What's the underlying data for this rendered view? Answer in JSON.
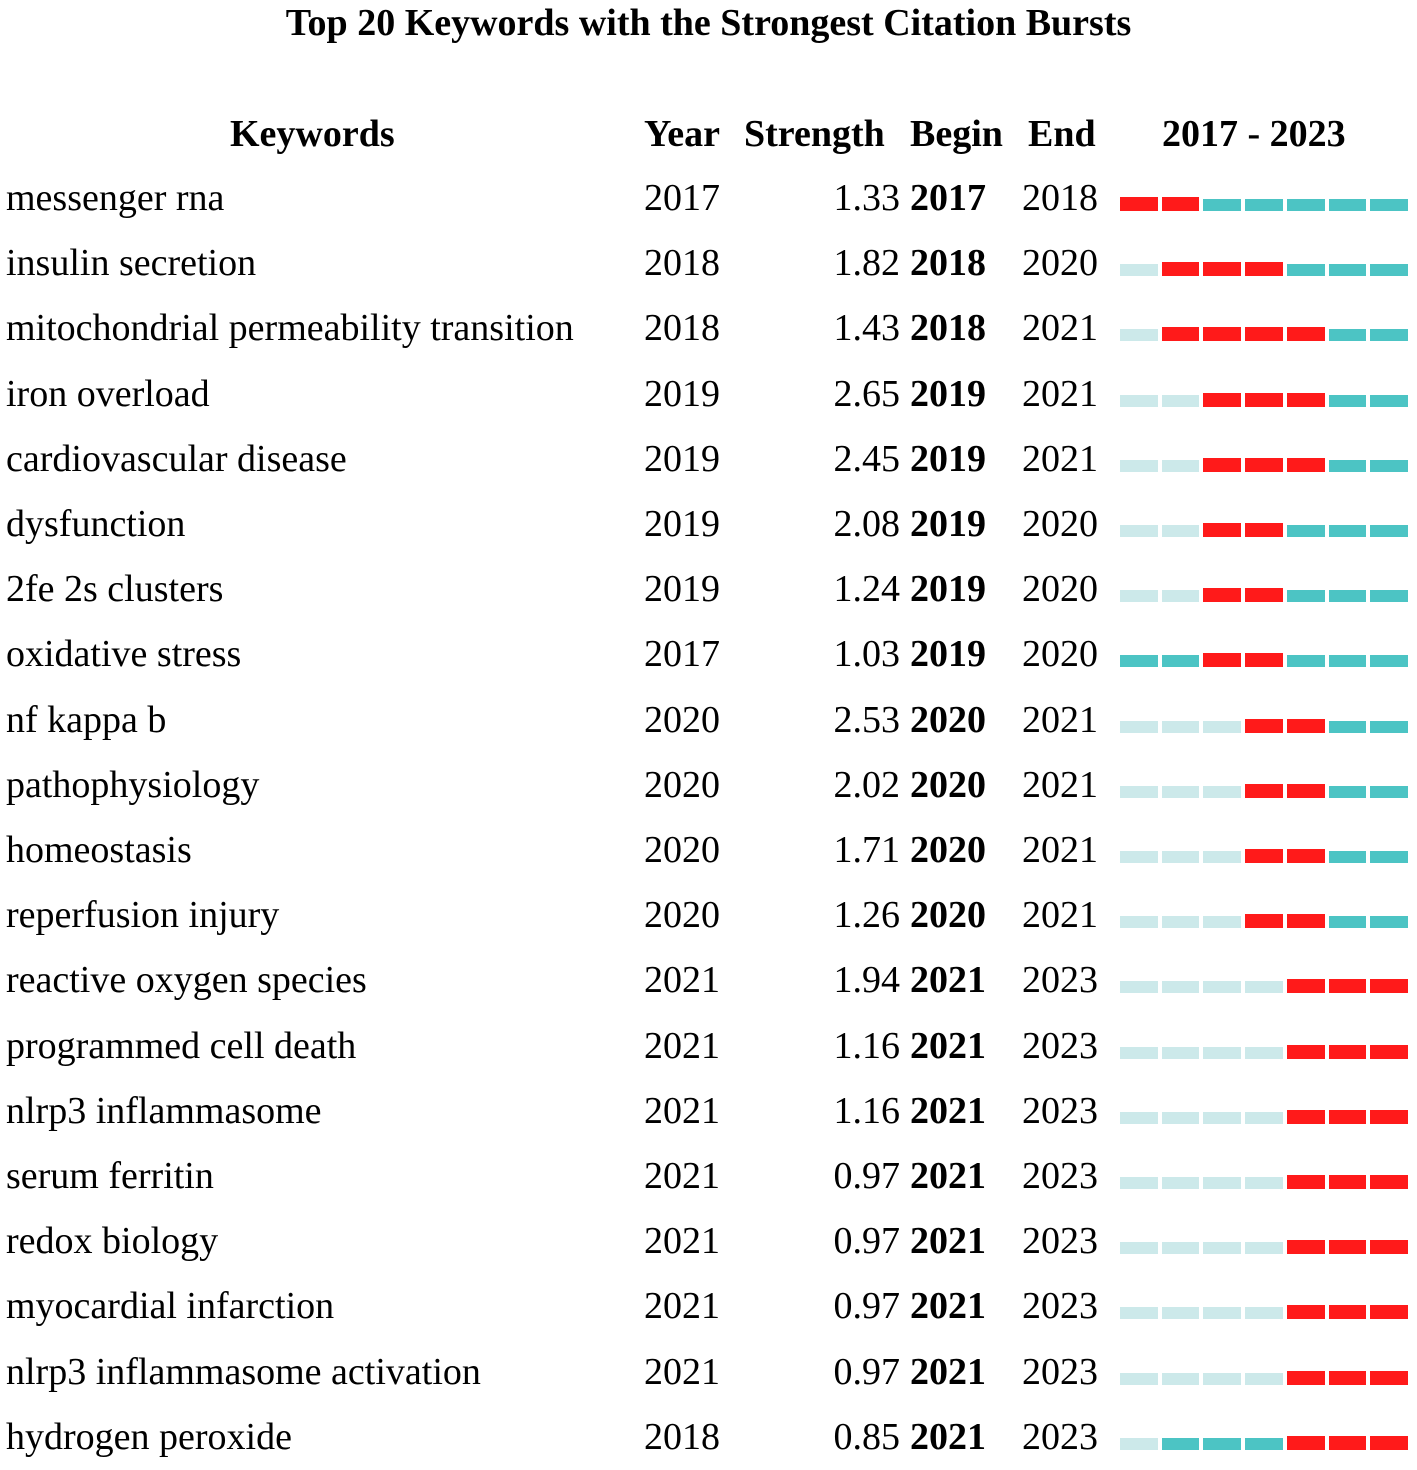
{
  "title": "Top 20 Keywords with the Strongest Citation Bursts",
  "headers": {
    "keywords": "Keywords",
    "year": "Year",
    "strength": "Strength",
    "begin": "Begin",
    "end": "End",
    "range": "2017 - 2023"
  },
  "colors": {
    "burst": "#ff1a1a",
    "active": "#4cc4c4",
    "inactive": "#cce9ea"
  },
  "chart_data": {
    "type": "table",
    "title": "Top 20 Keywords with the Strongest Citation Bursts",
    "timeline": {
      "start": 2017,
      "end": 2023
    },
    "rows": [
      {
        "keyword": "messenger rna",
        "year": "2017",
        "strength": "1.33",
        "begin": "2017",
        "end": "2018"
      },
      {
        "keyword": "insulin secretion",
        "year": "2018",
        "strength": "1.82",
        "begin": "2018",
        "end": "2020"
      },
      {
        "keyword": "mitochondrial permeability transition",
        "year": "2018",
        "strength": "1.43",
        "begin": "2018",
        "end": "2021"
      },
      {
        "keyword": "iron overload",
        "year": "2019",
        "strength": "2.65",
        "begin": "2019",
        "end": "2021"
      },
      {
        "keyword": "cardiovascular disease",
        "year": "2019",
        "strength": "2.45",
        "begin": "2019",
        "end": "2021"
      },
      {
        "keyword": "dysfunction",
        "year": "2019",
        "strength": "2.08",
        "begin": "2019",
        "end": "2020"
      },
      {
        "keyword": "2fe 2s clusters",
        "year": "2019",
        "strength": "1.24",
        "begin": "2019",
        "end": "2020"
      },
      {
        "keyword": "oxidative stress",
        "year": "2017",
        "strength": "1.03",
        "begin": "2019",
        "end": "2020"
      },
      {
        "keyword": "nf kappa b",
        "year": "2020",
        "strength": "2.53",
        "begin": "2020",
        "end": "2021"
      },
      {
        "keyword": "pathophysiology",
        "year": "2020",
        "strength": "2.02",
        "begin": "2020",
        "end": "2021"
      },
      {
        "keyword": "homeostasis",
        "year": "2020",
        "strength": "1.71",
        "begin": "2020",
        "end": "2021"
      },
      {
        "keyword": "reperfusion injury",
        "year": "2020",
        "strength": "1.26",
        "begin": "2020",
        "end": "2021"
      },
      {
        "keyword": "reactive oxygen species",
        "year": "2021",
        "strength": "1.94",
        "begin": "2021",
        "end": "2023"
      },
      {
        "keyword": "programmed cell death",
        "year": "2021",
        "strength": "1.16",
        "begin": "2021",
        "end": "2023"
      },
      {
        "keyword": "nlrp3 inflammasome",
        "year": "2021",
        "strength": "1.16",
        "begin": "2021",
        "end": "2023"
      },
      {
        "keyword": "serum ferritin",
        "year": "2021",
        "strength": "0.97",
        "begin": "2021",
        "end": "2023"
      },
      {
        "keyword": "redox biology",
        "year": "2021",
        "strength": "0.97",
        "begin": "2021",
        "end": "2023"
      },
      {
        "keyword": "myocardial infarction",
        "year": "2021",
        "strength": "0.97",
        "begin": "2021",
        "end": "2023"
      },
      {
        "keyword": "nlrp3 inflammasome activation",
        "year": "2021",
        "strength": "0.97",
        "begin": "2021",
        "end": "2023"
      },
      {
        "keyword": "hydrogen peroxide",
        "year": "2018",
        "strength": "0.85",
        "begin": "2021",
        "end": "2023"
      }
    ]
  }
}
